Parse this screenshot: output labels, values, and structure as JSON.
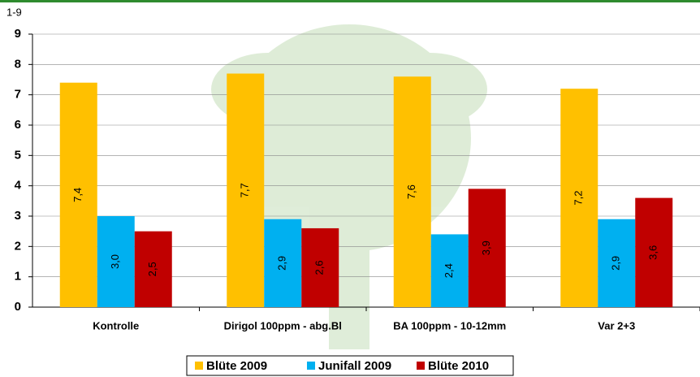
{
  "chart_data": {
    "type": "bar",
    "y_label": "1-9",
    "categories": [
      "Kontrolle",
      "Dirigol 100ppm - abg.Bl",
      "BA 100ppm - 10-12mm",
      "Var 2+3"
    ],
    "series": [
      {
        "name": "Blüte 2009",
        "color": "#ffc000",
        "values": [
          7.4,
          7.7,
          7.6,
          7.2
        ],
        "value_labels": [
          "7,4",
          "7,7",
          "7,6",
          "7,2"
        ]
      },
      {
        "name": "Junifall 2009",
        "color": "#00b0f0",
        "values": [
          3.0,
          2.9,
          2.4,
          2.9
        ],
        "value_labels": [
          "3,0",
          "2,9",
          "2,4",
          "2,9"
        ]
      },
      {
        "name": "Blüte 2010",
        "color": "#c00000",
        "values": [
          2.5,
          2.6,
          3.9,
          3.6
        ],
        "value_labels": [
          "2,5",
          "2,6",
          "3,9",
          "3,6"
        ]
      }
    ],
    "ylim": [
      0,
      9
    ],
    "yticks": [
      0,
      1,
      2,
      3,
      4,
      5,
      6,
      7,
      8,
      9
    ],
    "grid": true,
    "legend": "bottom"
  }
}
